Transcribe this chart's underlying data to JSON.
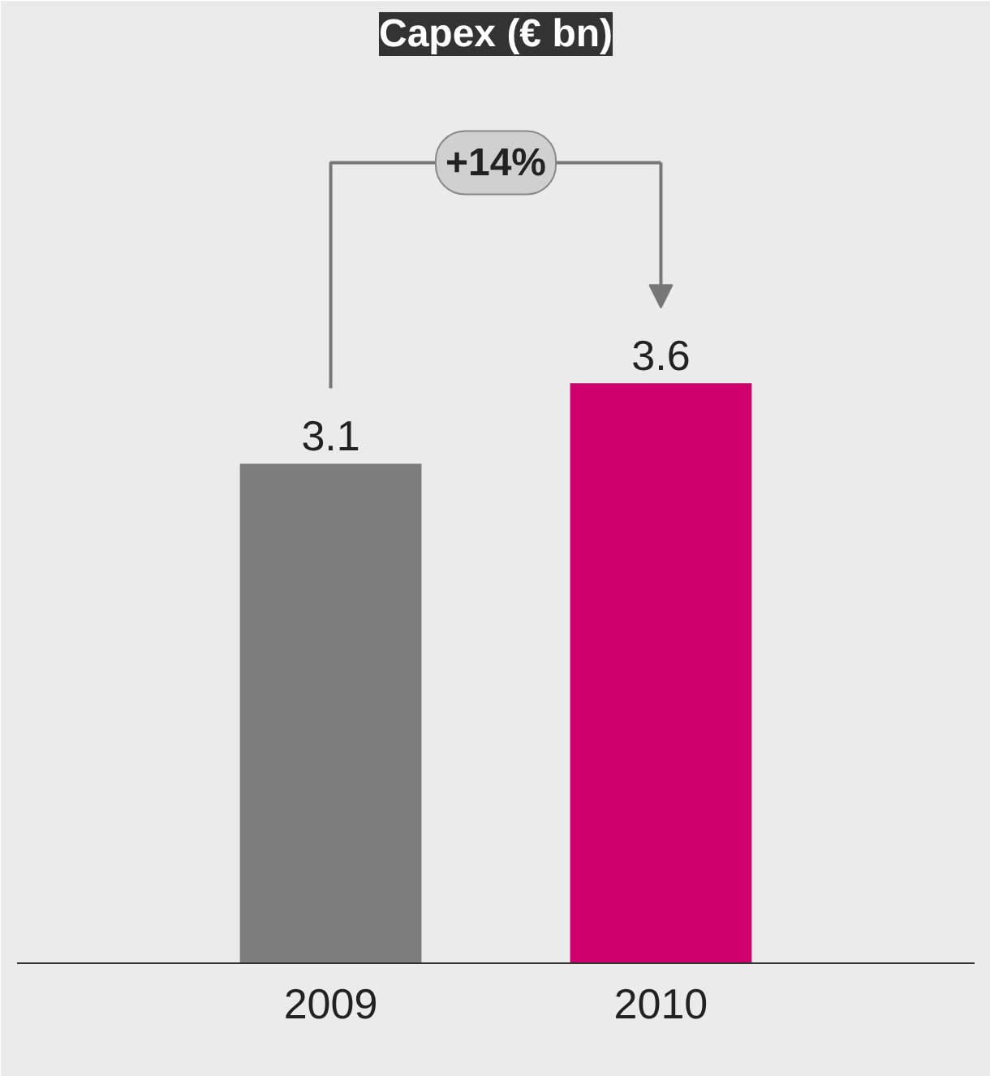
{
  "chart_data": {
    "type": "bar",
    "title": "Capex (€ bn)",
    "categories": [
      "2009",
      "2010"
    ],
    "values": [
      3.1,
      3.6
    ],
    "colors": [
      "#7d7d7d",
      "#d1006f"
    ],
    "data_labels": true,
    "annotations": [
      "+14%"
    ]
  }
}
